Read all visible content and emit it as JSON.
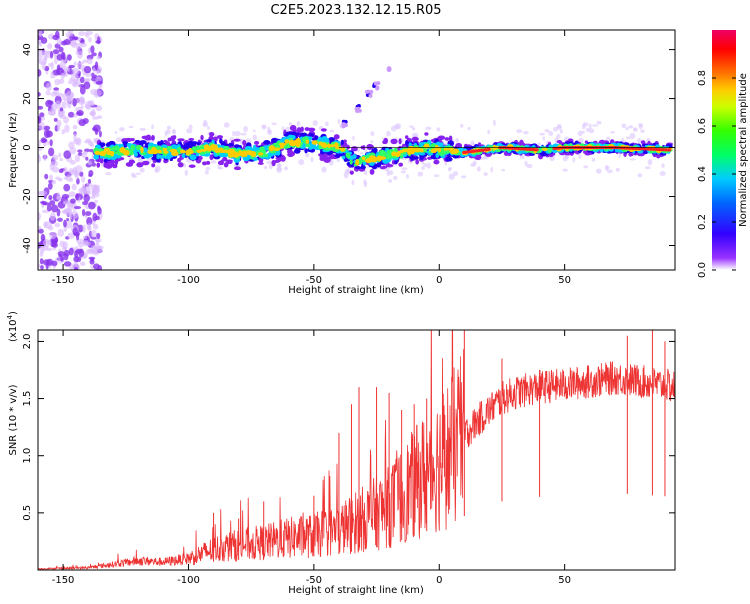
{
  "title": "C2E5.2023.132.12.15.R05",
  "colorbar": {
    "label": "Normalized spectral amplitude",
    "range": [
      0.0,
      1.0
    ],
    "ticks": [
      "0.0",
      "0.2",
      "0.4",
      "0.6",
      "0.8"
    ],
    "tick_values": [
      0.0,
      0.2,
      0.4,
      0.6,
      0.8
    ]
  },
  "chart_data": [
    {
      "type": "heatmap",
      "xlabel": "Height of straight line (km)",
      "ylabel": "Frequency (Hz)",
      "xlim": [
        -160,
        94
      ],
      "ylim": [
        -50,
        48
      ],
      "x_ticks": [
        -150,
        -100,
        -50,
        0,
        50
      ],
      "y_ticks": [
        -40,
        -20,
        0,
        20,
        40
      ],
      "grid": false,
      "description_points": {
        "ridge_center_hz": [
          [
            -135,
            -2
          ],
          [
            -120,
            -1
          ],
          [
            -100,
            -2
          ],
          [
            -90,
            0
          ],
          [
            -80,
            -3
          ],
          [
            -70,
            -2
          ],
          [
            -60,
            2
          ],
          [
            -50,
            2
          ],
          [
            -40,
            0
          ],
          [
            -34,
            -6
          ],
          [
            -25,
            -4
          ],
          [
            -15,
            -2
          ],
          [
            -5,
            0
          ],
          [
            0,
            -1
          ],
          [
            10,
            -2
          ],
          [
            25,
            0
          ],
          [
            40,
            -1
          ],
          [
            50,
            0
          ],
          [
            70,
            0
          ],
          [
            92,
            -1
          ]
        ],
        "feature_streak": [
          [
            -38,
            10
          ],
          [
            -32,
            16
          ],
          [
            -28,
            22
          ],
          [
            -25,
            25
          ]
        ],
        "feature_isolated": [
          [
            -20,
            32
          ]
        ]
      }
    },
    {
      "type": "line",
      "xlabel": "Height of straight line (km)",
      "ylabel": "SNR (10 * v/v)",
      "y_multiplier": "(x10",
      "y_multiplier_exp": "4",
      "y_multiplier_close": ")",
      "xlim": [
        -160,
        94
      ],
      "ylim": [
        0,
        2.1
      ],
      "x_ticks": [
        -150,
        -100,
        -50,
        0,
        50
      ],
      "y_ticks": [
        0.5,
        1.0,
        1.5,
        2.0
      ],
      "y_tick_labels": [
        "0.5",
        "1.0",
        "1.5",
        "2.0"
      ],
      "series": [
        {
          "color": "#ee3333",
          "envelope": {
            "x": [
              -160,
              -140,
              -130,
              -120,
              -110,
              -100,
              -90,
              -80,
              -70,
              -60,
              -50,
              -45,
              -40,
              -35,
              -30,
              -25,
              -20,
              -15,
              -10,
              -5,
              0,
              5,
              10,
              15,
              20,
              25,
              30,
              40,
              50,
              60,
              70,
              80,
              94
            ],
            "y": [
              0.01,
              0.02,
              0.05,
              0.08,
              0.07,
              0.1,
              0.18,
              0.22,
              0.24,
              0.28,
              0.3,
              0.33,
              0.35,
              0.4,
              0.45,
              0.5,
              0.55,
              0.65,
              0.75,
              0.85,
              0.95,
              1.05,
              1.18,
              1.3,
              1.4,
              1.5,
              1.55,
              1.6,
              1.62,
              1.65,
              1.68,
              1.65,
              1.6
            ]
          },
          "spikes": [
            [
              -90,
              0.5
            ],
            [
              -80,
              0.45
            ],
            [
              -70,
              0.6
            ],
            [
              -50,
              0.65
            ],
            [
              -40,
              1.2
            ],
            [
              -35,
              1.45
            ],
            [
              -32,
              1.6
            ],
            [
              -25,
              1.6
            ],
            [
              -20,
              1.55
            ],
            [
              -15,
              1.4
            ],
            [
              -10,
              1.45
            ],
            [
              -5,
              1.5
            ],
            [
              10,
              2.1
            ],
            [
              25,
              1.85
            ],
            [
              40,
              1.75
            ],
            [
              75,
              2.05
            ],
            [
              85,
              2.1
            ],
            [
              90,
              2.0
            ]
          ]
        }
      ]
    }
  ]
}
